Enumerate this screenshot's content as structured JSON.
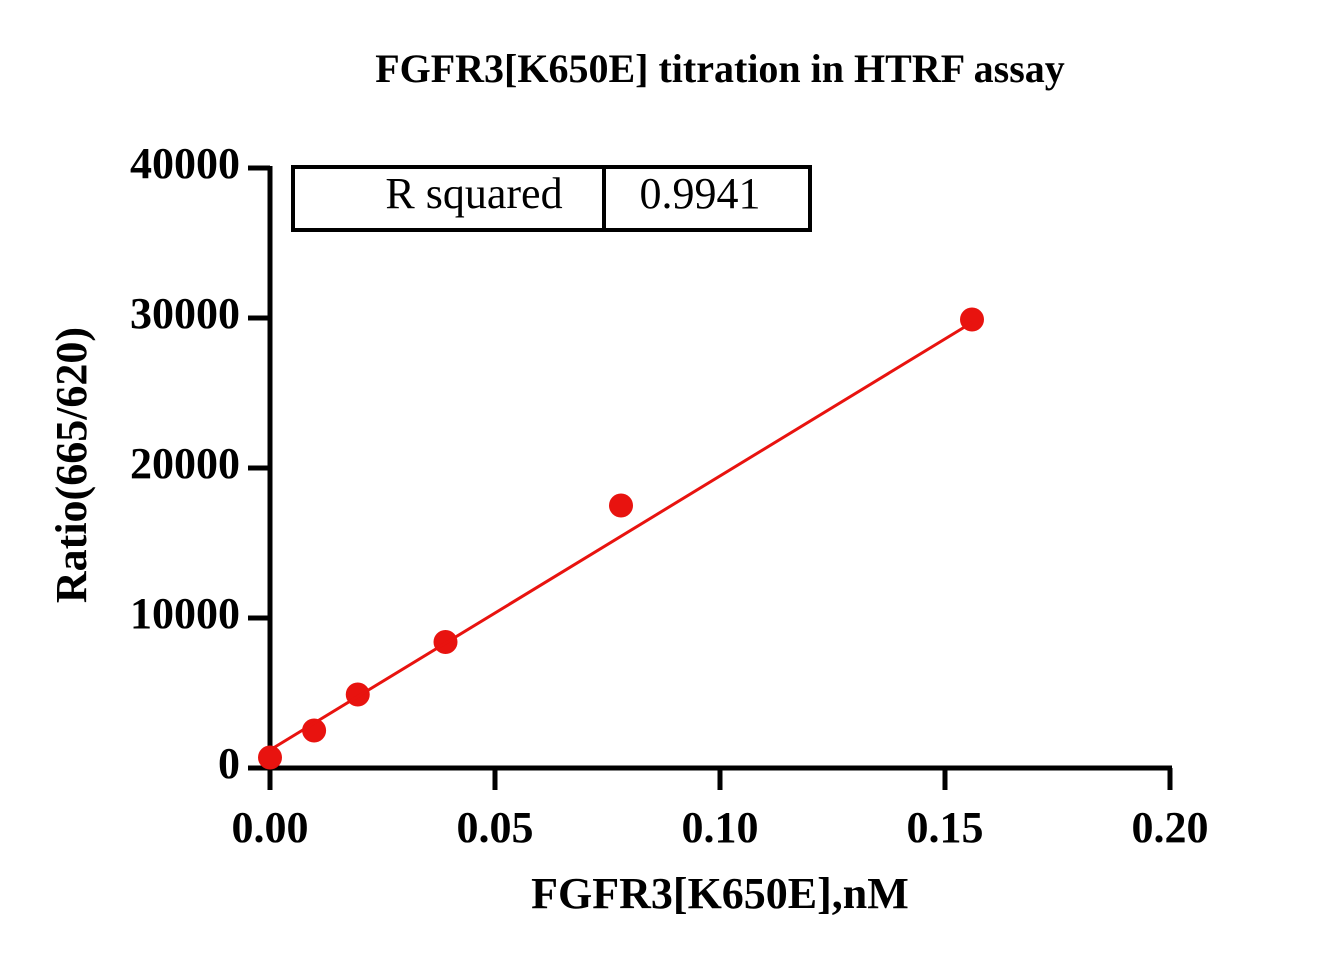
{
  "chart_data": {
    "type": "scatter",
    "title": "FGFR3[K650E] titration in HTRF assay",
    "xlabel": "FGFR3[K650E],nM",
    "ylabel": "Ratio(665/620)",
    "xlim": [
      0,
      0.2
    ],
    "ylim": [
      0,
      40000
    ],
    "xticks": [
      {
        "value": 0,
        "label": "0.00"
      },
      {
        "value": 0.05,
        "label": "0.05"
      },
      {
        "value": 0.1,
        "label": "0.10"
      },
      {
        "value": 0.15,
        "label": "0.15"
      },
      {
        "value": 0.2,
        "label": "0.20"
      }
    ],
    "yticks": [
      0,
      10000,
      20000,
      30000,
      40000
    ],
    "series": [
      {
        "color": "#e8130f",
        "marker": "circle",
        "x": [
          0,
          0.0098,
          0.0195,
          0.039,
          0.078,
          0.156
        ],
        "values": [
          700,
          2500,
          4900,
          8400,
          17500,
          29900
        ]
      },
      {
        "color": "#e8130f",
        "style": "line",
        "x": [
          0,
          0.156
        ],
        "values": [
          1200,
          29700
        ]
      }
    ],
    "stats_table": {
      "label": "R squared",
      "value": 0.9941
    }
  }
}
